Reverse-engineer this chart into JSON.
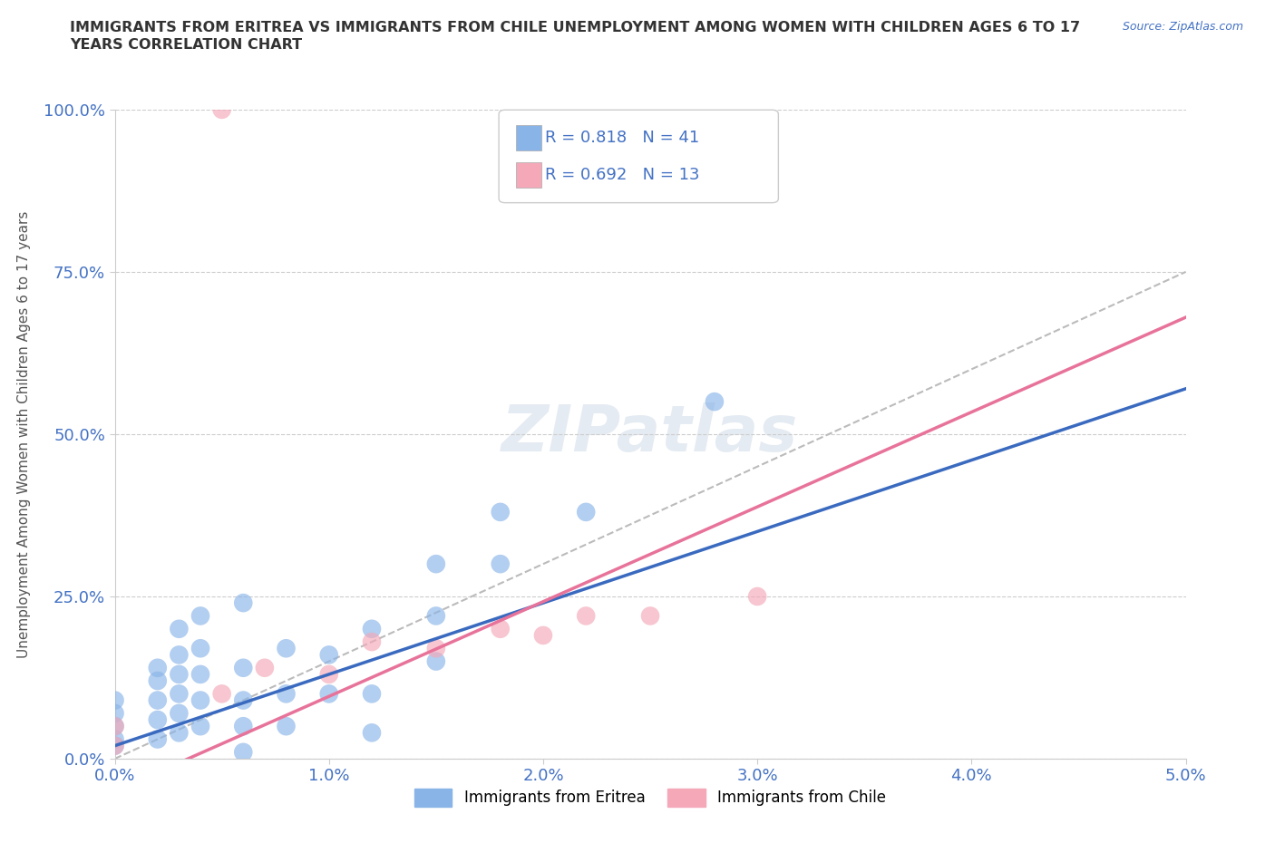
{
  "title": "IMMIGRANTS FROM ERITREA VS IMMIGRANTS FROM CHILE UNEMPLOYMENT AMONG WOMEN WITH CHILDREN AGES 6 TO 17\nYEARS CORRELATION CHART",
  "source_text": "Source: ZipAtlas.com",
  "ylabel": "Unemployment Among Women with Children Ages 6 to 17 years",
  "xlim": [
    0.0,
    0.05
  ],
  "ylim": [
    0.0,
    1.0
  ],
  "xtick_labels": [
    "0.0%",
    "1.0%",
    "2.0%",
    "3.0%",
    "4.0%",
    "5.0%"
  ],
  "ytick_labels": [
    "0.0%",
    "25.0%",
    "50.0%",
    "75.0%",
    "100.0%"
  ],
  "grid_color": "#cccccc",
  "background_color": "#ffffff",
  "eritrea_color": "#89b4e8",
  "chile_color": "#f4a8b8",
  "eritrea_R": 0.818,
  "eritrea_N": 41,
  "chile_R": 0.692,
  "chile_N": 13,
  "eritrea_line_color": "#3a6abf",
  "chile_line_color": "#e8739a",
  "dashed_line_color": "#bbbbbb",
  "eritrea_scatter_x": [
    0.0,
    0.0,
    0.0,
    0.0,
    0.0,
    0.002,
    0.002,
    0.002,
    0.002,
    0.002,
    0.003,
    0.003,
    0.003,
    0.003,
    0.003,
    0.003,
    0.004,
    0.004,
    0.004,
    0.004,
    0.004,
    0.006,
    0.006,
    0.006,
    0.006,
    0.006,
    0.008,
    0.008,
    0.008,
    0.01,
    0.01,
    0.012,
    0.012,
    0.012,
    0.015,
    0.015,
    0.015,
    0.018,
    0.018,
    0.022,
    0.028
  ],
  "eritrea_scatter_y": [
    0.02,
    0.03,
    0.05,
    0.07,
    0.09,
    0.03,
    0.06,
    0.09,
    0.12,
    0.14,
    0.04,
    0.07,
    0.1,
    0.13,
    0.16,
    0.2,
    0.05,
    0.09,
    0.13,
    0.17,
    0.22,
    0.01,
    0.05,
    0.09,
    0.14,
    0.24,
    0.05,
    0.1,
    0.17,
    0.1,
    0.16,
    0.04,
    0.1,
    0.2,
    0.15,
    0.22,
    0.3,
    0.3,
    0.38,
    0.38,
    0.55
  ],
  "chile_scatter_x": [
    0.0,
    0.0,
    0.005,
    0.007,
    0.01,
    0.012,
    0.015,
    0.018,
    0.02,
    0.022,
    0.025,
    0.03,
    0.005
  ],
  "chile_scatter_y": [
    0.02,
    0.05,
    0.1,
    0.14,
    0.13,
    0.18,
    0.17,
    0.2,
    0.19,
    0.22,
    0.22,
    0.25,
    1.0
  ]
}
